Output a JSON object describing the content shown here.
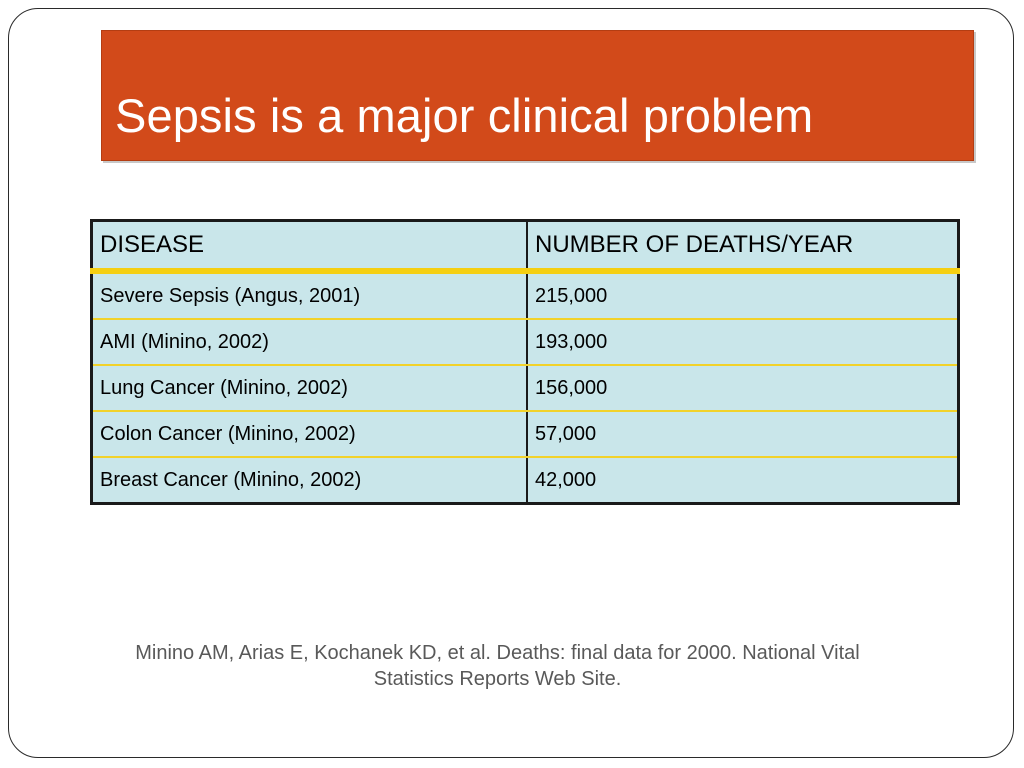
{
  "slide": {
    "title": "Sepsis is a major clinical problem",
    "colors": {
      "title_banner": "#d24a1a",
      "title_text": "#ffffff",
      "table_background": "#c9e6ea",
      "row_divider": "#f2d22a",
      "citation_text": "#595959"
    }
  },
  "table": {
    "headers": [
      "DISEASE",
      "NUMBER OF DEATHS/YEAR"
    ],
    "rows": [
      {
        "disease": "Severe Sepsis (Angus, 2001)",
        "deaths": "215,000"
      },
      {
        "disease": "AMI (Minino, 2002)",
        "deaths": "193,000"
      },
      {
        "disease": "Lung Cancer (Minino, 2002)",
        "deaths": "156,000"
      },
      {
        "disease": "Colon Cancer (Minino, 2002)",
        "deaths": "57,000"
      },
      {
        "disease": "Breast Cancer (Minino, 2002)",
        "deaths": "42,000"
      }
    ]
  },
  "citation": {
    "line1": "Minino AM, Arias E, Kochanek KD, et al. Deaths: final data for 2000. National Vital",
    "line2": "Statistics Reports Web Site."
  }
}
